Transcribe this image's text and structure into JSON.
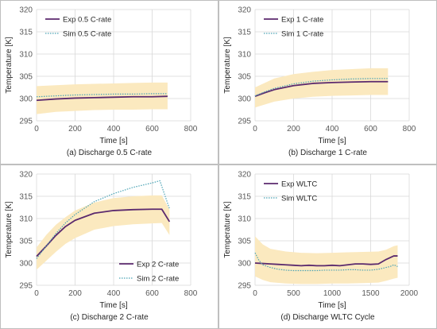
{
  "colors": {
    "exp": "#5b2a6e",
    "sim": "#4aa3b5",
    "band": "#fbe9bf",
    "grid": "#d9d9d9",
    "frame": "#bfbfbf"
  },
  "chart_data": [
    {
      "type": "line",
      "caption": "(a) Discharge 0.5 C-rate",
      "xlabel": "Time [s]",
      "ylabel": "Temperature [K]",
      "xlim": [
        0,
        800
      ],
      "ylim": [
        295,
        320
      ],
      "xticks": [
        0,
        200,
        400,
        600,
        800
      ],
      "yticks": [
        295,
        300,
        305,
        310,
        315,
        320
      ],
      "legend": "top-left",
      "grid": true,
      "band": {
        "x": [
          0,
          100,
          200,
          300,
          400,
          500,
          600,
          680
        ],
        "lower": [
          296.5,
          297.0,
          297.2,
          297.4,
          297.5,
          297.5,
          297.6,
          297.6
        ],
        "upper": [
          302.8,
          303.0,
          303.2,
          303.3,
          303.4,
          303.5,
          303.6,
          303.6
        ]
      },
      "series": [
        {
          "name": "Exp 0.5 C-rate",
          "style": "solid",
          "x": [
            0,
            100,
            200,
            300,
            400,
            500,
            600,
            680
          ],
          "y": [
            299.6,
            299.9,
            300.1,
            300.2,
            300.3,
            300.4,
            300.4,
            300.5
          ]
        },
        {
          "name": "Sim 0.5 C-rate",
          "style": "dotted",
          "x": [
            0,
            100,
            200,
            300,
            400,
            500,
            600,
            680
          ],
          "y": [
            300.4,
            300.6,
            300.8,
            300.9,
            301.0,
            301.0,
            301.1,
            301.1
          ]
        }
      ]
    },
    {
      "type": "line",
      "caption": "(b) Discharge 1 C-rate",
      "xlabel": "Time [s]",
      "ylabel": "Temperature [K]",
      "xlim": [
        0,
        800
      ],
      "ylim": [
        295,
        320
      ],
      "xticks": [
        0,
        200,
        400,
        600,
        800
      ],
      "yticks": [
        295,
        300,
        305,
        310,
        315,
        320
      ],
      "legend": "top-left",
      "grid": true,
      "band": {
        "x": [
          0,
          100,
          200,
          300,
          400,
          500,
          600,
          690
        ],
        "lower": [
          298.0,
          299.3,
          300.0,
          300.4,
          300.6,
          300.7,
          300.8,
          300.8
        ],
        "upper": [
          302.5,
          304.5,
          305.5,
          306.0,
          306.4,
          306.6,
          306.8,
          306.8
        ]
      },
      "series": [
        {
          "name": "Exp 1 C-rate",
          "style": "solid",
          "x": [
            0,
            50,
            100,
            200,
            300,
            400,
            500,
            600,
            690
          ],
          "y": [
            300.5,
            301.3,
            302.0,
            302.9,
            303.4,
            303.6,
            303.7,
            303.8,
            303.8
          ]
        },
        {
          "name": "Sim 1 C-rate",
          "style": "dotted",
          "x": [
            0,
            50,
            100,
            200,
            300,
            400,
            500,
            600,
            690
          ],
          "y": [
            300.6,
            301.5,
            302.3,
            303.3,
            303.9,
            304.2,
            304.4,
            304.5,
            304.5
          ]
        }
      ]
    },
    {
      "type": "line",
      "caption": "(c) Discharge 2 C-rate",
      "xlabel": "Time [s]",
      "ylabel": "Temperature [K]",
      "xlim": [
        0,
        800
      ],
      "ylim": [
        295,
        320
      ],
      "xticks": [
        0,
        200,
        400,
        600,
        800
      ],
      "yticks": [
        295,
        300,
        305,
        310,
        315,
        320
      ],
      "legend": "bottom-right",
      "grid": true,
      "band": {
        "x": [
          0,
          50,
          100,
          150,
          200,
          300,
          400,
          500,
          600,
          650,
          690
        ],
        "lower": [
          298.5,
          300.5,
          302.5,
          304.3,
          305.6,
          307.5,
          308.3,
          308.7,
          308.9,
          309.0,
          306.3
        ],
        "upper": [
          303.5,
          306.3,
          308.6,
          310.3,
          311.8,
          313.6,
          314.6,
          315.0,
          315.2,
          315.2,
          312.0
        ]
      },
      "series": [
        {
          "name": "Exp 2 C-rate",
          "style": "solid",
          "x": [
            0,
            50,
            100,
            150,
            200,
            300,
            400,
            500,
            600,
            650,
            690
          ],
          "y": [
            301.5,
            303.8,
            306.2,
            308.2,
            309.6,
            311.2,
            311.8,
            312.0,
            312.1,
            312.1,
            309.3
          ]
        },
        {
          "name": "Sim 2 C-rate",
          "style": "dotted",
          "x": [
            0,
            50,
            100,
            150,
            200,
            300,
            400,
            500,
            600,
            640,
            690
          ],
          "y": [
            301.0,
            303.8,
            306.6,
            309.0,
            310.9,
            313.8,
            315.6,
            317.0,
            318.0,
            318.5,
            312.2
          ]
        }
      ]
    },
    {
      "type": "line",
      "caption": "(d) Discharge WLTC Cycle",
      "xlabel": "Time [s]",
      "ylabel": "Temperature [K]",
      "xlim": [
        0,
        2000
      ],
      "ylim": [
        295,
        320
      ],
      "xticks": [
        0,
        500,
        1000,
        1500,
        2000
      ],
      "yticks": [
        295,
        300,
        305,
        310,
        315,
        320
      ],
      "legend": "top-left",
      "grid": true,
      "band": {
        "x": [
          0,
          100,
          200,
          400,
          600,
          800,
          1000,
          1200,
          1400,
          1600,
          1700,
          1800,
          1850
        ],
        "lower": [
          297.0,
          296.2,
          295.7,
          295.4,
          295.3,
          295.3,
          295.4,
          295.4,
          295.5,
          295.6,
          296.0,
          296.5,
          296.7
        ],
        "upper": [
          306.0,
          304.2,
          303.2,
          302.6,
          302.3,
          302.2,
          302.3,
          302.4,
          302.5,
          302.6,
          303.0,
          303.8,
          304.0
        ]
      },
      "series": [
        {
          "name": "Exp WLTC",
          "style": "solid",
          "x": [
            0,
            100,
            200,
            300,
            400,
            500,
            600,
            700,
            800,
            900,
            1000,
            1100,
            1200,
            1300,
            1400,
            1500,
            1600,
            1700,
            1750,
            1800,
            1850
          ],
          "y": [
            300.0,
            299.9,
            299.8,
            299.7,
            299.6,
            299.5,
            299.4,
            299.5,
            299.4,
            299.4,
            299.5,
            299.4,
            299.6,
            299.8,
            299.8,
            299.7,
            299.8,
            300.8,
            301.2,
            301.6,
            301.6
          ]
        },
        {
          "name": "Sim WLTC",
          "style": "dotted",
          "x": [
            0,
            50,
            100,
            200,
            300,
            400,
            500,
            600,
            700,
            800,
            900,
            1000,
            1100,
            1200,
            1300,
            1400,
            1500,
            1600,
            1700,
            1750,
            1800,
            1850
          ],
          "y": [
            302.3,
            300.6,
            299.6,
            299.0,
            298.6,
            298.4,
            298.3,
            298.3,
            298.3,
            298.3,
            298.4,
            298.4,
            298.4,
            298.5,
            298.5,
            298.4,
            298.4,
            298.6,
            299.0,
            299.2,
            299.6,
            299.2
          ]
        }
      ]
    }
  ]
}
